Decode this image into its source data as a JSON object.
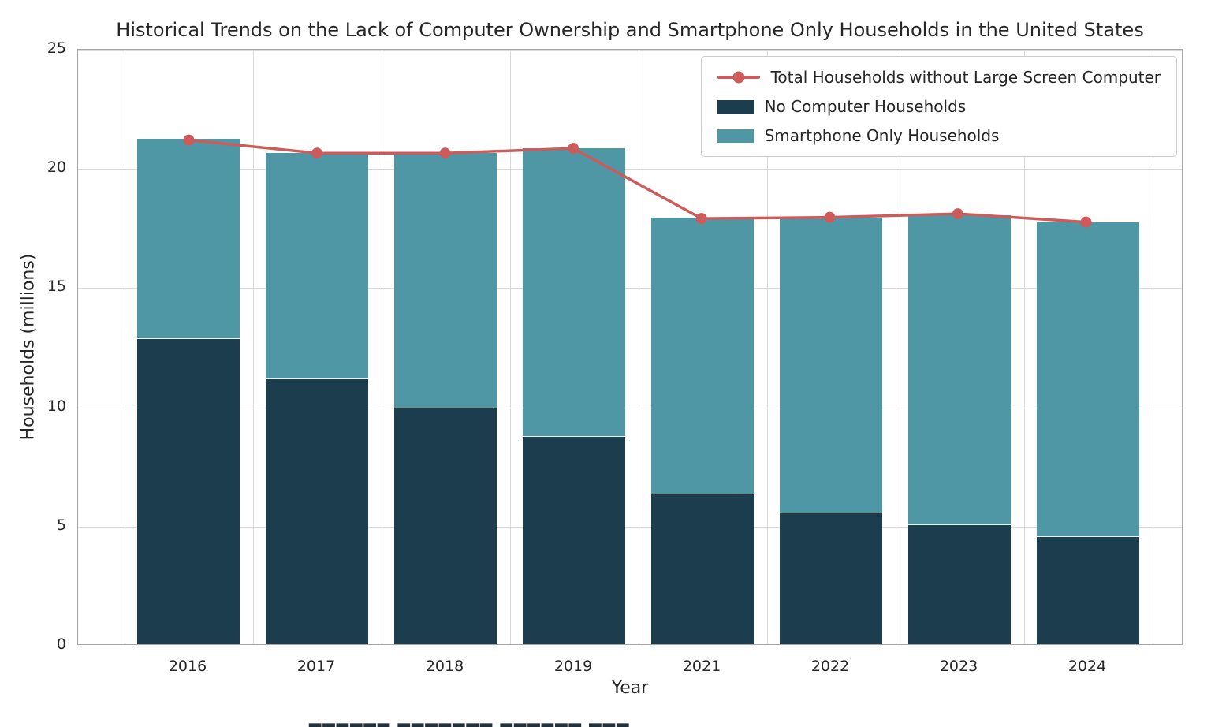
{
  "chart_data": {
    "type": "bar",
    "stacked": true,
    "title": "Historical Trends on the Lack of Computer Ownership and Smartphone Only Households in the United States",
    "xlabel": "Year",
    "ylabel": "Households (millions)",
    "categories": [
      "2016",
      "2017",
      "2018",
      "2019",
      "2021",
      "2022",
      "2023",
      "2024"
    ],
    "series": [
      {
        "name": "No Computer Households",
        "type": "bar",
        "color": "#1c3d4e",
        "values": [
          12.8,
          11.1,
          9.9,
          8.7,
          6.3,
          5.5,
          5.0,
          4.5
        ]
      },
      {
        "name": "Smartphone Only Households",
        "type": "bar",
        "color": "#4f97a4",
        "values": [
          8.4,
          9.5,
          10.7,
          12.1,
          11.6,
          12.4,
          13.0,
          13.2
        ]
      },
      {
        "name": "Total Households without Large Screen Computer",
        "type": "line",
        "color": "#cc5c5c",
        "values": [
          21.2,
          20.65,
          20.65,
          20.85,
          17.9,
          17.95,
          18.1,
          17.75
        ]
      }
    ],
    "ylim": [
      0,
      25
    ],
    "yticks": [
      0,
      5,
      10,
      15,
      20,
      25
    ],
    "grid": true,
    "legend_position": "upper right",
    "legend": [
      "Total Households without Large Screen Computer",
      "No Computer Households",
      "Smartphone Only Households"
    ]
  },
  "colors": {
    "no_computer": "#1c3d4e",
    "smartphone_only": "#4f97a4",
    "total_line": "#cc5c5c",
    "grid": "#d9d9d9",
    "text": "#262626",
    "spine": "#a6a6a6"
  },
  "footer": {
    "clipped_text": "▇▇▇▇▇▇ ▇▇▇▇▇▇▇ ▇▇▇▇▇▇ ▇▇▇"
  }
}
